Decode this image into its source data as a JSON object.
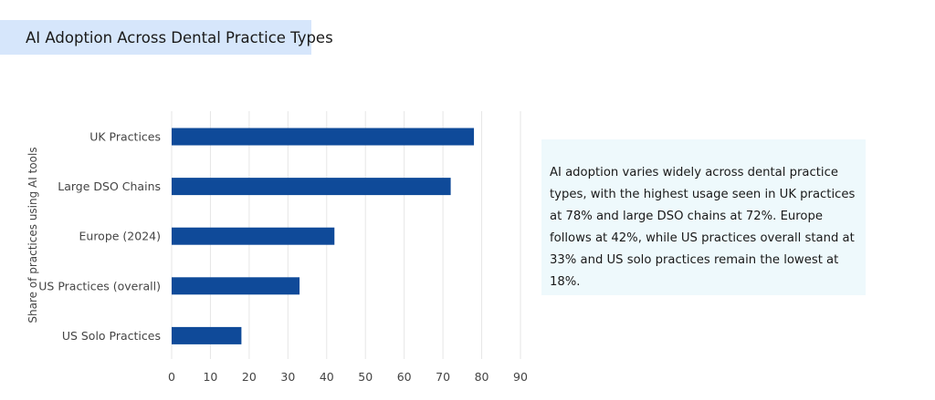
{
  "header": {
    "title": "AI Adoption Across Dental Practice Types"
  },
  "chart_data": {
    "type": "bar",
    "orientation": "horizontal",
    "categories": [
      "UK Practices",
      "Large DSO Chains",
      "Europe (2024)",
      "US Practices (overall)",
      "US Solo Practices"
    ],
    "values": [
      78,
      72,
      42,
      33,
      18
    ],
    "xlabel": "",
    "ylabel": "Share of practices using AI tools",
    "xlim": [
      0,
      90
    ],
    "xticks": [
      0,
      10,
      20,
      30,
      40,
      50,
      60,
      70,
      80,
      90
    ],
    "grid": "vertical",
    "bar_color": "#0f4a99"
  },
  "note": {
    "text": "AI adoption varies widely across dental practice types, with the highest usage seen in UK practices at 78% and large DSO chains at 72%. Europe follows at 42%, while US practices overall stand at 33% and US solo practices remain the lowest at 18%."
  },
  "colors": {
    "title_bg": "#d6e6fb",
    "note_bg": "#eef9fc",
    "bar": "#0f4a99",
    "grid": "#e6e6e6"
  }
}
